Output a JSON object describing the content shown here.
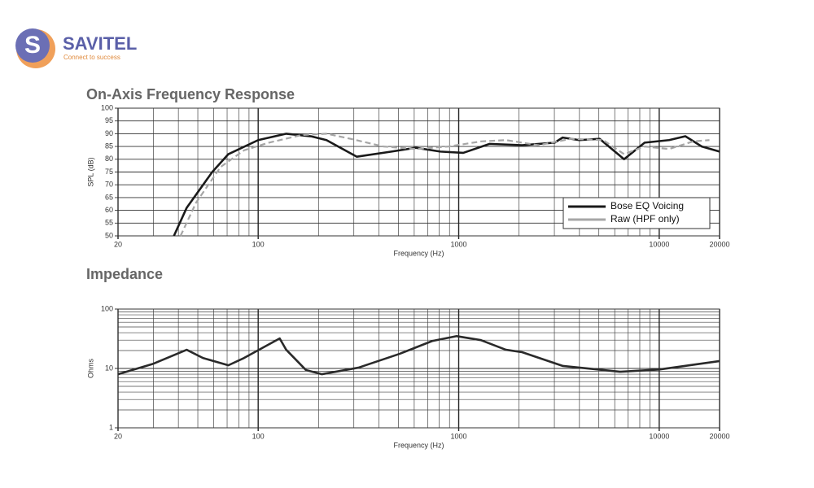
{
  "logo": {
    "name": "SAVITEL",
    "tagline": "Connect to success"
  },
  "chart_data": [
    {
      "type": "line",
      "title": "On-Axis Frequency Response",
      "x_label": "Frequency (Hz)",
      "y_label": "SPL (dB)",
      "log_x": true,
      "xlim": [
        20,
        20000
      ],
      "xticks": [
        20,
        100,
        1000,
        10000,
        20000
      ],
      "x_minor_gridlines": [
        30,
        40,
        50,
        60,
        70,
        80,
        90,
        200,
        300,
        400,
        500,
        600,
        700,
        800,
        900,
        2000,
        3000,
        4000,
        5000,
        6000,
        7000,
        8000,
        9000
      ],
      "ylim": [
        50,
        100
      ],
      "yticks": [
        50,
        55,
        60,
        65,
        70,
        75,
        80,
        85,
        90,
        95,
        100
      ],
      "grid": true,
      "legend": "lower right",
      "series": [
        {
          "name": "Bose EQ Voicing",
          "color": "#1a1a1a",
          "dashed": false,
          "x": [
            38,
            44,
            59,
            71,
            100,
            138,
            183,
            219,
            310,
            462,
            612,
            811,
            1054,
            1422,
            2070,
            3010,
            3300,
            3990,
            5040,
            6680,
            8460,
            11200,
            13500,
            16300,
            20000
          ],
          "values": [
            50,
            61,
            75,
            82,
            87.5,
            90,
            89,
            87.5,
            81,
            83,
            84.5,
            83,
            82.5,
            86,
            85.5,
            86.5,
            88.5,
            87.5,
            88,
            80,
            86.5,
            87.5,
            89,
            85,
            83
          ]
        },
        {
          "name": "Raw (HPF only)",
          "color": "#a6a6a6",
          "dashed": true,
          "x": [
            41,
            49,
            65,
            85,
            113,
            165,
            219,
            289,
            421,
            612,
            891,
            1297,
            1718,
            2500,
            3630,
            5250,
            6680,
            8460,
            11200,
            14800,
            17800
          ],
          "values": [
            50,
            63,
            77,
            83.5,
            86.5,
            89.5,
            90,
            88,
            85,
            84,
            85,
            87,
            87.5,
            85.5,
            88,
            87.5,
            82,
            85,
            84,
            87,
            87.5
          ]
        }
      ]
    },
    {
      "type": "line",
      "title": "Impedance",
      "x_label": "Frequency (Hz)",
      "y_label": "Ohms",
      "log_x": true,
      "xlim": [
        20,
        20000
      ],
      "xticks": [
        20,
        100,
        1000,
        10000,
        20000
      ],
      "x_minor_gridlines": [
        30,
        40,
        50,
        60,
        70,
        80,
        90,
        200,
        300,
        400,
        500,
        600,
        700,
        800,
        900,
        2000,
        3000,
        4000,
        5000,
        6000,
        7000,
        8000,
        9000
      ],
      "log_y": true,
      "ylim": [
        1,
        100
      ],
      "yticks": [
        1,
        10,
        100
      ],
      "y_minor_gridlines": [
        2,
        3,
        4,
        5,
        6,
        7,
        8,
        9,
        20,
        30,
        40,
        50,
        60,
        70,
        80,
        90
      ],
      "grid": true,
      "color": "#2a2a2a",
      "x": [
        20,
        30,
        44,
        53,
        71,
        85,
        128,
        138,
        173,
        208,
        316,
        507,
        738,
        977,
        1290,
        1720,
        2070,
        3310,
        6380,
        10000,
        20000
      ],
      "values": [
        8,
        12,
        20.6,
        15,
        11.3,
        15,
        32,
        20.6,
        9.4,
        8,
        10.3,
        17.6,
        29,
        35,
        30,
        20.6,
        18.8,
        11,
        8.8,
        9.6,
        13.3
      ]
    }
  ]
}
